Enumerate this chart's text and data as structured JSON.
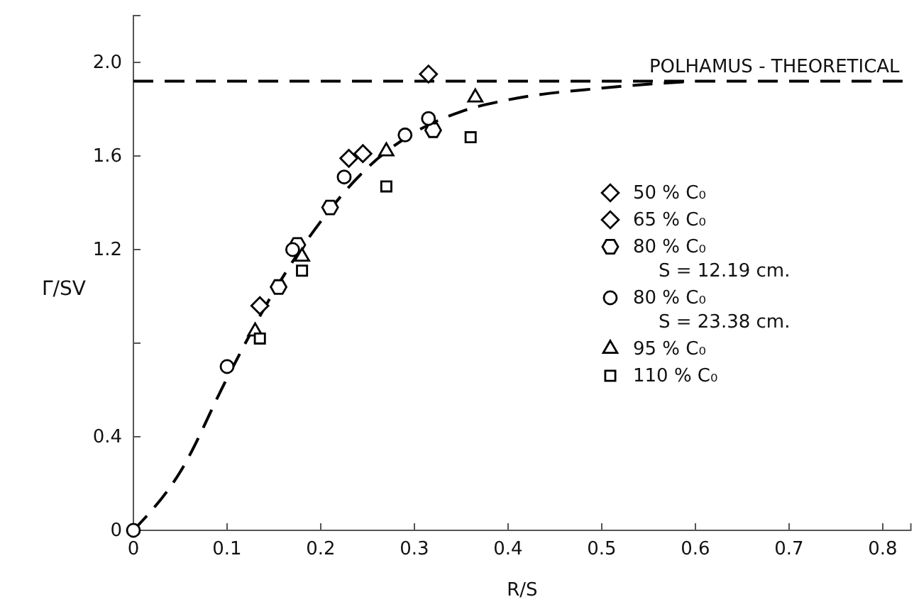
{
  "chart_data": {
    "type": "scatter",
    "xlabel": "R/S",
    "ylabel": "Γ/SV",
    "xlim": [
      0,
      0.83
    ],
    "ylim": [
      0,
      2.2
    ],
    "xticks": [
      0,
      0.1,
      0.2,
      0.3,
      0.4,
      0.5,
      0.6,
      0.7,
      0.8
    ],
    "yticks": [
      0,
      0.4,
      {
        "value": 0.8,
        "label": null
      },
      1.2,
      1.6,
      {
        "value": 2.0,
        "label": "2.0"
      }
    ],
    "grid": false,
    "legend": "right",
    "ref_lines": [
      {
        "axis": "y",
        "value": 1.92,
        "label": "POLHAMUS - THEORETICAL",
        "color": "#000000",
        "line_style": "dashed"
      }
    ],
    "series": [
      {
        "name": "50 % C₀",
        "color": "#000000",
        "marker": "diamond",
        "x": [
          0.135,
          0.23,
          0.315
        ],
        "values": [
          0.96,
          1.59,
          1.95
        ]
      },
      {
        "name": "65 % C₀",
        "color": "#000000",
        "marker": "diamond",
        "x": [
          0.245
        ],
        "values": [
          1.61
        ]
      },
      {
        "name": "80 % C₀\nS = 12.19 cm.",
        "color": "#000000",
        "x": [
          0.155,
          0.175,
          0.21,
          0.32
        ],
        "values": [
          1.04,
          1.22,
          1.38,
          1.71
        ]
      },
      {
        "name": "80 % C₀\nS = 23.38 cm.",
        "color": "#000000",
        "marker": "circle",
        "x": [
          0,
          0.1,
          0.17,
          0.225,
          0.29,
          0.315
        ],
        "values": [
          0,
          0.7,
          1.2,
          1.51,
          1.69,
          1.76
        ]
      },
      {
        "name": "95 % C₀",
        "color": "#000000",
        "marker": "triangle",
        "x": [
          0.13,
          0.18,
          0.27,
          0.365
        ],
        "values": [
          0.85,
          1.17,
          1.62,
          1.85
        ]
      },
      {
        "name": "110 % C₀",
        "color": "#000000",
        "marker": "square",
        "x": [
          0.135,
          0.18,
          0.27,
          0.36
        ],
        "values": [
          0.82,
          1.11,
          1.47,
          1.68
        ]
      },
      {
        "type": "line",
        "color": "#000000",
        "line_style": "dashed",
        "marker": "none",
        "x": [
          0,
          0.05,
          0.1,
          0.15,
          0.2,
          0.25,
          0.3,
          0.35,
          0.4,
          0.5,
          0.6
        ],
        "values": [
          0,
          0.25,
          0.65,
          1.02,
          1.32,
          1.55,
          1.7,
          1.79,
          1.84,
          1.89,
          1.92
        ]
      }
    ]
  }
}
